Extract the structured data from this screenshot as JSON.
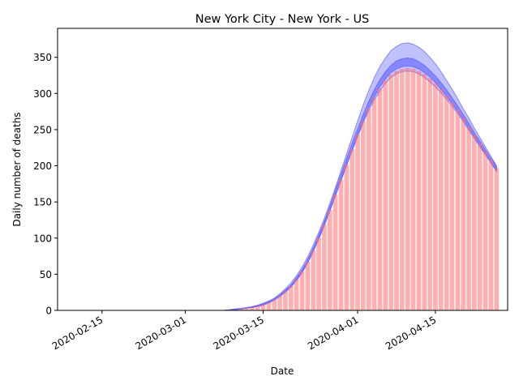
{
  "chart_data": {
    "type": "bar",
    "title": "New York City - New York - US",
    "xlabel": "Date",
    "ylabel": "Daily number of deaths",
    "ylim": [
      0,
      390
    ],
    "xlim": [
      "2020-02-07",
      "2020-04-28"
    ],
    "grid": false,
    "x_ticks": [
      "2020-02-15",
      "2020-03-01",
      "2020-03-15",
      "2020-04-01",
      "2020-04-15"
    ],
    "y_ticks": [
      0,
      50,
      100,
      150,
      200,
      250,
      300,
      350
    ],
    "bars": {
      "start_date": "2020-03-01",
      "values": [
        0,
        0,
        0,
        0,
        0,
        0,
        0,
        0,
        1,
        1,
        2,
        3,
        4,
        6,
        8,
        11,
        15,
        20,
        27,
        34,
        43,
        54,
        67,
        83,
        100,
        119,
        139,
        160,
        181,
        202,
        223,
        243,
        262,
        279,
        294,
        307,
        318,
        326,
        331,
        334,
        335,
        334,
        331,
        327,
        321,
        314,
        306,
        297,
        287,
        277,
        266,
        254,
        243,
        231,
        220,
        208,
        197
      ]
    },
    "series": [
      {
        "type": "band",
        "color": "#4d4dff",
        "opacity": 0.35,
        "start_date": "2020-03-01",
        "lower": [
          0,
          0,
          0,
          0,
          0,
          0,
          0,
          0,
          1,
          1,
          2,
          3,
          4,
          5,
          7,
          10,
          14,
          19,
          25,
          32,
          41,
          52,
          65,
          81,
          98,
          117,
          137,
          158,
          179,
          200,
          220,
          240,
          259,
          276,
          291,
          303,
          314,
          322,
          327,
          330,
          331,
          330,
          327,
          322,
          316,
          309,
          301,
          292,
          282,
          272,
          261,
          249,
          238,
          226,
          215,
          204,
          193
        ],
        "upper": [
          0,
          0,
          0,
          0,
          0,
          0,
          0,
          0,
          1,
          2,
          3,
          4,
          5,
          7,
          10,
          13,
          17,
          23,
          30,
          38,
          48,
          60,
          74,
          90,
          108,
          127,
          148,
          170,
          193,
          216,
          239,
          262,
          284,
          304,
          322,
          337,
          349,
          359,
          365,
          369,
          370,
          368,
          364,
          358,
          350,
          341,
          330,
          318,
          306,
          293,
          279,
          266,
          252,
          239,
          226,
          213,
          200
        ]
      },
      {
        "type": "band",
        "color": "#4d4dff",
        "opacity": 0.5,
        "start_date": "2020-03-01",
        "lower": [
          0,
          0,
          0,
          0,
          0,
          0,
          0,
          0,
          1,
          1,
          2,
          3,
          4,
          6,
          8,
          11,
          15,
          20,
          26,
          33,
          42,
          53,
          66,
          82,
          99,
          118,
          138,
          159,
          180,
          201,
          222,
          242,
          262,
          280,
          295,
          309,
          320,
          329,
          334,
          337,
          338,
          337,
          334,
          329,
          323,
          315,
          306,
          296,
          286,
          275,
          264,
          252,
          240,
          228,
          216,
          204,
          192
        ],
        "upper": [
          0,
          0,
          0,
          0,
          0,
          0,
          0,
          0,
          1,
          2,
          2,
          3,
          5,
          7,
          9,
          12,
          16,
          21,
          28,
          35,
          45,
          56,
          70,
          86,
          104,
          123,
          144,
          166,
          188,
          210,
          231,
          251,
          271,
          289,
          305,
          319,
          330,
          339,
          345,
          348,
          349,
          348,
          344,
          339,
          332,
          324,
          315,
          305,
          294,
          283,
          271,
          259,
          246,
          234,
          222,
          210,
          199
        ]
      }
    ]
  }
}
